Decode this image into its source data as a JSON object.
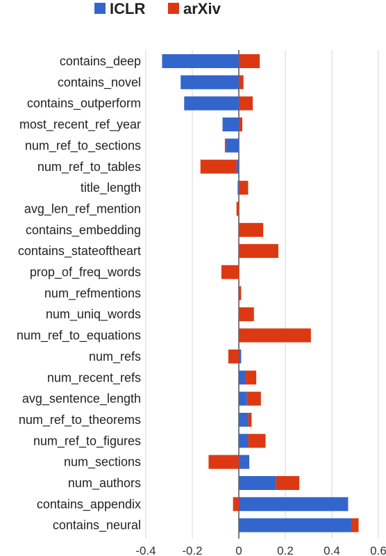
{
  "chart_data": {
    "type": "bar",
    "orientation": "horizontal",
    "stacked": true,
    "legend_position": "top",
    "grid": true,
    "colors": {
      "ICLR": "#3366cc",
      "arXiv": "#dc3912"
    },
    "xlim": [
      -0.4,
      0.6
    ],
    "xticks": [
      "-0.4",
      "-0.2",
      "0",
      "0.2",
      "0.4",
      "0.6"
    ],
    "xtick_values": [
      -0.4,
      -0.2,
      0,
      0.2,
      0.4,
      0.6
    ],
    "categories": [
      "contains_deep",
      "contains_novel",
      "contains_outperform",
      "most_recent_ref_year",
      "num_ref_to_sections",
      "num_ref_to_tables",
      "title_length",
      "avg_len_ref_mention",
      "contains_embedding",
      "contains_stateoftheart",
      "prop_of_freq_words",
      "num_refmentions",
      "num_uniq_words",
      "num_ref_to_equations",
      "num_refs",
      "num_recent_refs",
      "avg_sentence_length",
      "num_ref_to_theorems",
      "num_ref_to_figures",
      "num_sections",
      "num_authors",
      "contains_appendix",
      "contains_neural"
    ],
    "series": [
      {
        "name": "ICLR",
        "values": [
          -0.33,
          -0.25,
          -0.235,
          -0.07,
          -0.055,
          -0.01,
          -0.005,
          0,
          0,
          0,
          0,
          0,
          0,
          0,
          0.01,
          0.03,
          0.035,
          0.04,
          0.04,
          0.045,
          0.16,
          0.47,
          0.485
        ]
      },
      {
        "name": "arXiv",
        "values": [
          0.09,
          0.02,
          0.06,
          0.015,
          -0.005,
          -0.155,
          0.04,
          -0.01,
          0.105,
          0.17,
          -0.075,
          0.01,
          0.065,
          0.31,
          -0.045,
          0.045,
          0.06,
          0.015,
          0.075,
          -0.13,
          0.1,
          -0.025,
          0.03
        ]
      }
    ]
  }
}
